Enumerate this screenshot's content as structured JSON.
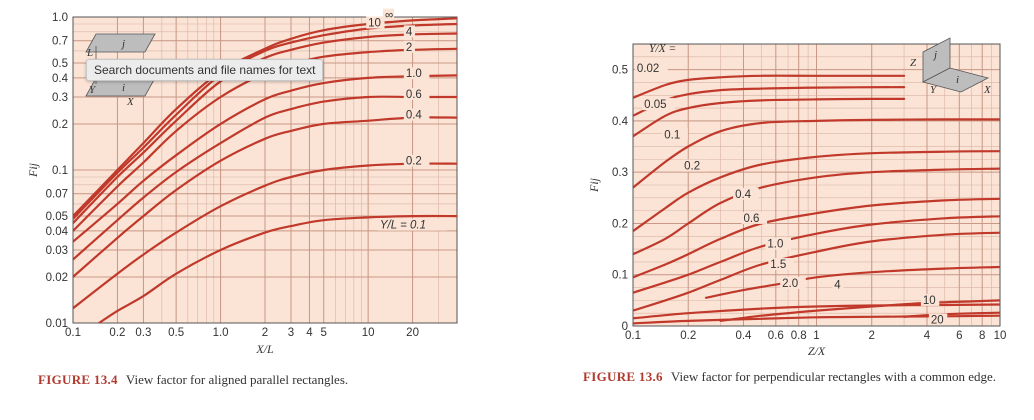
{
  "tooltip": "Search documents and file names for text",
  "palette": {
    "plot_bg": "#fbe4d6",
    "grid": "#d9b3a2",
    "curve": "#c0392b",
    "axis": "#555555",
    "inset_grey": "#bdbdbd"
  },
  "chart_data": [
    {
      "id": "fig13_4",
      "type": "line",
      "title": "",
      "caption_label": "FIGURE 13.4",
      "caption_text": "View factor for aligned parallel rectangles.",
      "xlabel": "X/L",
      "ylabel": "Fij",
      "xscale": "log",
      "yscale": "log",
      "xlim": [
        0.1,
        40
      ],
      "ylim": [
        0.01,
        1.0
      ],
      "xticks": [
        {
          "v": 0.1,
          "t": "0.1"
        },
        {
          "v": 0.2,
          "t": "0.2"
        },
        {
          "v": 0.3,
          "t": "0.3"
        },
        {
          "v": 0.5,
          "t": "0.5"
        },
        {
          "v": 1.0,
          "t": "1.0"
        },
        {
          "v": 2,
          "t": "2"
        },
        {
          "v": 3,
          "t": "3"
        },
        {
          "v": 4,
          "t": "4"
        },
        {
          "v": 5,
          "t": "5"
        },
        {
          "v": 10,
          "t": "10"
        },
        {
          "v": 20,
          "t": "20"
        }
      ],
      "yticks": [
        {
          "v": 0.01,
          "t": "0.01"
        },
        {
          "v": 0.02,
          "t": "0.02"
        },
        {
          "v": 0.03,
          "t": "0.03"
        },
        {
          "v": 0.04,
          "t": "0.04"
        },
        {
          "v": 0.05,
          "t": "0.05"
        },
        {
          "v": 0.07,
          "t": "0.07"
        },
        {
          "v": 0.1,
          "t": "0.1"
        },
        {
          "v": 0.2,
          "t": "0.2"
        },
        {
          "v": 0.3,
          "t": "0.3"
        },
        {
          "v": 0.4,
          "t": "0.4"
        },
        {
          "v": 0.5,
          "t": "0.5"
        },
        {
          "v": 0.7,
          "t": "0.7"
        },
        {
          "v": 1.0,
          "t": "1.0"
        }
      ],
      "legend_title": "",
      "inset_labels": [
        "j",
        "L",
        "i",
        "Y",
        "X"
      ],
      "series": [
        {
          "name": "∞",
          "label": "∞",
          "label_at": [
            13,
            0.99
          ],
          "x": [
            0.1,
            0.2,
            0.3,
            0.5,
            1,
            2,
            3,
            5,
            10,
            20,
            40
          ],
          "y": [
            0.05,
            0.1,
            0.15,
            0.25,
            0.44,
            0.62,
            0.72,
            0.82,
            0.9,
            0.95,
            0.98
          ]
        },
        {
          "name": "10",
          "label": "10",
          "label_at": [
            10,
            0.88
          ],
          "x": [
            0.1,
            0.2,
            0.3,
            0.5,
            1,
            2,
            3,
            5,
            10,
            20,
            40
          ],
          "y": [
            0.048,
            0.096,
            0.14,
            0.23,
            0.42,
            0.6,
            0.68,
            0.76,
            0.84,
            0.88,
            0.9
          ]
        },
        {
          "name": "4",
          "label": "4",
          "label_at": [
            18,
            0.77
          ],
          "x": [
            0.1,
            0.2,
            0.3,
            0.5,
            1,
            2,
            3,
            5,
            10,
            20,
            40
          ],
          "y": [
            0.045,
            0.09,
            0.13,
            0.21,
            0.38,
            0.54,
            0.61,
            0.68,
            0.74,
            0.77,
            0.78
          ]
        },
        {
          "name": "2",
          "label": "2",
          "label_at": [
            18,
            0.61
          ],
          "x": [
            0.1,
            0.2,
            0.3,
            0.5,
            1,
            2,
            3,
            5,
            10,
            20,
            40
          ],
          "y": [
            0.04,
            0.078,
            0.112,
            0.18,
            0.3,
            0.43,
            0.49,
            0.55,
            0.59,
            0.61,
            0.62
          ]
        },
        {
          "name": "1.0",
          "label": "1.0",
          "label_at": [
            18,
            0.41
          ],
          "x": [
            0.1,
            0.2,
            0.3,
            0.5,
            1,
            2,
            3,
            5,
            10,
            20,
            40
          ],
          "y": [
            0.034,
            0.06,
            0.085,
            0.125,
            0.2,
            0.29,
            0.33,
            0.37,
            0.4,
            0.41,
            0.415
          ]
        },
        {
          "name": "0.6",
          "label": "0.6",
          "label_at": [
            18,
            0.3
          ],
          "x": [
            0.1,
            0.2,
            0.3,
            0.5,
            1,
            2,
            3,
            5,
            10,
            20,
            40
          ],
          "y": [
            0.026,
            0.047,
            0.066,
            0.097,
            0.15,
            0.22,
            0.25,
            0.28,
            0.3,
            0.3,
            0.3
          ]
        },
        {
          "name": "0.4",
          "label": "0.4",
          "label_at": [
            18,
            0.22
          ],
          "x": [
            0.1,
            0.2,
            0.3,
            0.5,
            1,
            2,
            3,
            5,
            10,
            20,
            40
          ],
          "y": [
            0.02,
            0.036,
            0.05,
            0.074,
            0.115,
            0.16,
            0.18,
            0.2,
            0.21,
            0.22,
            0.22
          ]
        },
        {
          "name": "0.2",
          "label": "0.2",
          "label_at": [
            18,
            0.11
          ],
          "x": [
            0.1,
            0.2,
            0.3,
            0.5,
            1,
            2,
            3,
            5,
            10,
            20,
            40
          ],
          "y": [
            0.0125,
            0.021,
            0.028,
            0.039,
            0.058,
            0.079,
            0.09,
            0.1,
            0.107,
            0.11,
            0.11
          ]
        },
        {
          "name": "0.1",
          "label": "Y/L = 0.1",
          "label_at": [
            12,
            0.042
          ],
          "x": [
            0.15,
            0.2,
            0.3,
            0.5,
            1,
            2,
            3,
            5,
            10,
            20,
            40
          ],
          "y": [
            0.01,
            0.012,
            0.015,
            0.021,
            0.03,
            0.039,
            0.043,
            0.047,
            0.049,
            0.05,
            0.05
          ]
        }
      ]
    },
    {
      "id": "fig13_6",
      "type": "line",
      "title": "",
      "caption_label": "FIGURE 13.6",
      "caption_text": "View factor for perpendicular rectangles with a common edge.",
      "xlabel": "Z/X",
      "ylabel": "Fij",
      "xscale": "log",
      "yscale": "linear",
      "xlim": [
        0.1,
        10
      ],
      "ylim": [
        0,
        0.55
      ],
      "xticks": [
        {
          "v": 0.1,
          "t": "0.1"
        },
        {
          "v": 0.2,
          "t": "0.2"
        },
        {
          "v": 0.4,
          "t": "0.4"
        },
        {
          "v": 0.6,
          "t": "0.6"
        },
        {
          "v": 0.8,
          "t": "0.8"
        },
        {
          "v": 1,
          "t": "1"
        },
        {
          "v": 2,
          "t": "2"
        },
        {
          "v": 4,
          "t": "4"
        },
        {
          "v": 6,
          "t": "6"
        },
        {
          "v": 8,
          "t": "8"
        },
        {
          "v": 10,
          "t": "10"
        }
      ],
      "yticks": [
        {
          "v": 0,
          "t": "0"
        },
        {
          "v": 0.1,
          "t": "0.1"
        },
        {
          "v": 0.2,
          "t": "0.2"
        },
        {
          "v": 0.3,
          "t": "0.3"
        },
        {
          "v": 0.4,
          "t": "0.4"
        },
        {
          "v": 0.5,
          "t": "0.5"
        }
      ],
      "legend_title": "Y/X =",
      "inset_labels": [
        "Z",
        "j",
        "i",
        "Y",
        "X"
      ],
      "series": [
        {
          "name": "0.02",
          "label": "0.02",
          "label_at": [
            0.105,
            0.497
          ],
          "x": [
            0.1,
            0.15,
            0.2,
            0.3,
            0.5,
            1,
            3
          ],
          "y": [
            0.445,
            0.47,
            0.48,
            0.485,
            0.488,
            0.488,
            0.488
          ]
        },
        {
          "name": "0.05",
          "label": "0.05",
          "label_at": [
            0.115,
            0.427
          ],
          "x": [
            0.1,
            0.15,
            0.2,
            0.3,
            0.5,
            1,
            3
          ],
          "y": [
            0.41,
            0.44,
            0.452,
            0.46,
            0.463,
            0.465,
            0.466
          ]
        },
        {
          "name": "0.1",
          "label": "0.1",
          "label_at": [
            0.148,
            0.368
          ],
          "x": [
            0.1,
            0.15,
            0.2,
            0.3,
            0.5,
            1,
            2,
            3
          ],
          "y": [
            0.37,
            0.41,
            0.425,
            0.435,
            0.44,
            0.442,
            0.443,
            0.443
          ]
        },
        {
          "name": "0.2",
          "label": "0.2",
          "label_at": [
            0.19,
            0.307
          ],
          "x": [
            0.1,
            0.15,
            0.2,
            0.3,
            0.5,
            1,
            2,
            5,
            10
          ],
          "y": [
            0.27,
            0.32,
            0.35,
            0.38,
            0.396,
            0.4,
            0.402,
            0.403,
            0.403
          ]
        },
        {
          "name": "0.4",
          "label": "0.4",
          "label_at": [
            0.36,
            0.252
          ],
          "x": [
            0.1,
            0.15,
            0.2,
            0.3,
            0.5,
            1,
            2,
            5,
            10
          ],
          "y": [
            0.185,
            0.23,
            0.26,
            0.29,
            0.315,
            0.33,
            0.337,
            0.34,
            0.341
          ]
        },
        {
          "name": "0.6",
          "label": "0.6",
          "label_at": [
            0.4,
            0.205
          ],
          "x": [
            0.1,
            0.15,
            0.2,
            0.3,
            0.5,
            1,
            2,
            5,
            10
          ],
          "y": [
            0.14,
            0.17,
            0.2,
            0.24,
            0.27,
            0.29,
            0.3,
            0.305,
            0.307
          ]
        },
        {
          "name": "1.0",
          "label": "1.0",
          "label_at": [
            0.54,
            0.155
          ],
          "x": [
            0.1,
            0.15,
            0.2,
            0.3,
            0.5,
            1,
            2,
            5,
            10
          ],
          "y": [
            0.095,
            0.12,
            0.14,
            0.17,
            0.2,
            0.22,
            0.235,
            0.245,
            0.248
          ]
        },
        {
          "name": "1.5",
          "label": "1.5",
          "label_at": [
            0.56,
            0.115
          ],
          "x": [
            0.1,
            0.15,
            0.2,
            0.3,
            0.5,
            1,
            2,
            5,
            10
          ],
          "y": [
            0.065,
            0.085,
            0.1,
            0.125,
            0.155,
            0.18,
            0.198,
            0.21,
            0.214
          ]
        },
        {
          "name": "2.0",
          "label": "2.0",
          "label_at": [
            0.65,
            0.078
          ],
          "x": [
            0.1,
            0.15,
            0.2,
            0.3,
            0.5,
            1,
            2,
            5,
            10
          ],
          "y": [
            0.03,
            0.05,
            0.065,
            0.09,
            0.12,
            0.145,
            0.165,
            0.178,
            0.182
          ]
        },
        {
          "name": "4",
          "label": "4",
          "label_at": [
            1.25,
            0.075
          ],
          "x": [
            0.25,
            0.4,
            0.7,
            1,
            2,
            5,
            10
          ],
          "y": [
            0.055,
            0.07,
            0.085,
            0.095,
            0.105,
            0.112,
            0.115
          ]
        },
        {
          "name": "10",
          "label": "10",
          "label_at": [
            3.8,
            0.045
          ],
          "x": [
            0.3,
            0.5,
            1,
            2,
            4,
            7,
            10
          ],
          "y": [
            0.01,
            0.02,
            0.03,
            0.038,
            0.045,
            0.048,
            0.05
          ]
        },
        {
          "name": "20",
          "label": "20",
          "label_at": [
            4.2,
            0.007
          ],
          "x": [
            3,
            4,
            6,
            10
          ],
          "y": [
            0.018,
            0.021,
            0.024,
            0.026
          ]
        },
        {
          "name": "base1",
          "label": "",
          "label_at": null,
          "x": [
            0.1,
            0.2,
            0.5,
            1,
            2,
            5,
            10
          ],
          "y": [
            0.005,
            0.01,
            0.014,
            0.017,
            0.018,
            0.019,
            0.02
          ]
        },
        {
          "name": "base2",
          "label": "",
          "label_at": null,
          "x": [
            0.1,
            0.2,
            0.5,
            1,
            2,
            5,
            10
          ],
          "y": [
            0.015,
            0.025,
            0.034,
            0.038,
            0.04,
            0.041,
            0.042
          ]
        }
      ]
    }
  ]
}
